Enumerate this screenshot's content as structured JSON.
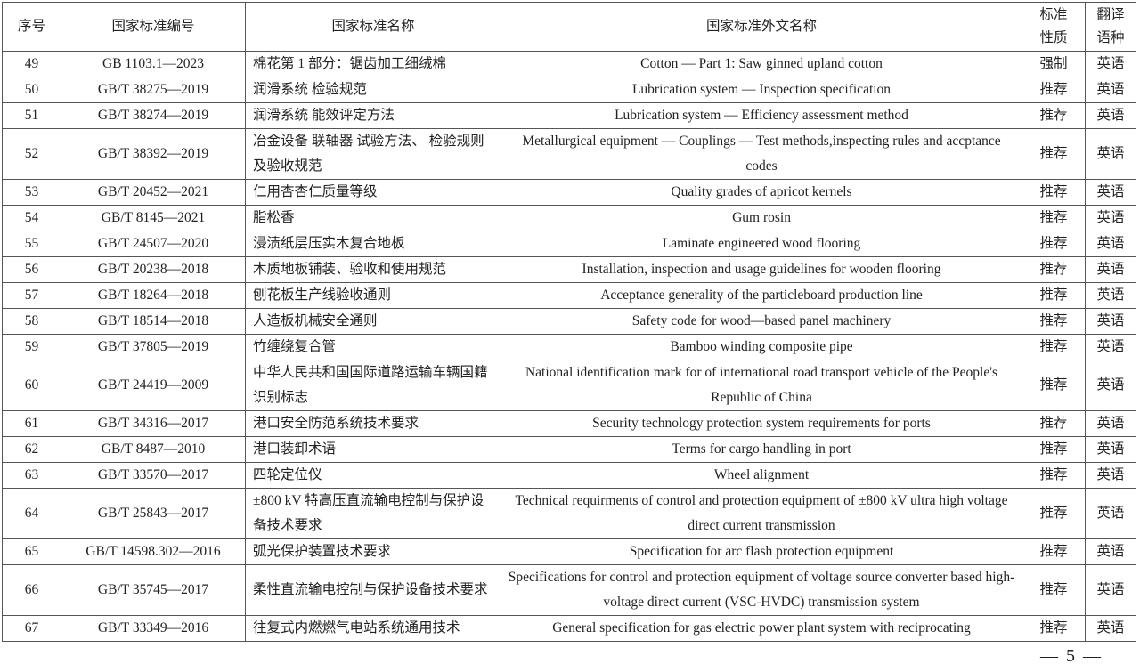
{
  "headers": {
    "no": "序号",
    "code": "国家标准编号",
    "name": "国家标准名称",
    "foreign_name": "国家标准外文名称",
    "nature": "标准\n性质",
    "lang": "翻译\n语种"
  },
  "rows": [
    {
      "no": "49",
      "code": "GB 1103.1—2023",
      "name": "棉花第 1 部分：锯齿加工细绒棉",
      "foreign_name": "Cotton — Part 1: Saw ginned upland cotton",
      "nature": "强制",
      "lang": "英语"
    },
    {
      "no": "50",
      "code": "GB/T 38275—2019",
      "name": "润滑系统  检验规范",
      "foreign_name": "Lubrication system — Inspection specification",
      "nature": "推荐",
      "lang": "英语"
    },
    {
      "no": "51",
      "code": "GB/T 38274—2019",
      "name": "润滑系统  能效评定方法",
      "foreign_name": "Lubrication system — Efficiency assessment method",
      "nature": "推荐",
      "lang": "英语"
    },
    {
      "no": "52",
      "code": "GB/T 38392—2019",
      "name": "冶金设备  联轴器  试验方法、  检验规则及验收规范",
      "foreign_name": "Metallurgical equipment — Couplings — Test methods,inspecting rules and accptance codes",
      "nature": "推荐",
      "lang": "英语"
    },
    {
      "no": "53",
      "code": "GB/T 20452—2021",
      "name": "仁用杏杏仁质量等级",
      "foreign_name": "Quality grades of apricot kernels",
      "nature": "推荐",
      "lang": "英语"
    },
    {
      "no": "54",
      "code": "GB/T 8145—2021",
      "name": "脂松香",
      "foreign_name": "Gum rosin",
      "nature": "推荐",
      "lang": "英语"
    },
    {
      "no": "55",
      "code": "GB/T 24507—2020",
      "name": "浸渍纸层压实木复合地板",
      "foreign_name": "Laminate engineered wood flooring",
      "nature": "推荐",
      "lang": "英语"
    },
    {
      "no": "56",
      "code": "GB/T 20238—2018",
      "name": "木质地板铺装、验收和使用规范",
      "foreign_name": "Installation, inspection and usage guidelines for wooden flooring",
      "nature": "推荐",
      "lang": "英语"
    },
    {
      "no": "57",
      "code": "GB/T 18264—2018",
      "name": "刨花板生产线验收通则",
      "foreign_name": "Acceptance generality of the particleboard production line",
      "nature": "推荐",
      "lang": "英语"
    },
    {
      "no": "58",
      "code": "GB/T 18514—2018",
      "name": "人造板机械安全通则",
      "foreign_name": "Safety code for wood—based panel machinery",
      "nature": "推荐",
      "lang": "英语"
    },
    {
      "no": "59",
      "code": "GB/T 37805—2019",
      "name": "竹缠绕复合管",
      "foreign_name": "Bamboo winding composite pipe",
      "nature": "推荐",
      "lang": "英语"
    },
    {
      "no": "60",
      "code": "GB/T 24419—2009",
      "name": "中华人民共和国国际道路运输车辆国籍识别标志",
      "foreign_name": "National identification mark for of international road transport vehicle of the People's Republic of China",
      "nature": "推荐",
      "lang": "英语"
    },
    {
      "no": "61",
      "code": "GB/T 34316—2017",
      "name": "港口安全防范系统技术要求",
      "foreign_name": "Security technology protection system requirements for ports",
      "nature": "推荐",
      "lang": "英语"
    },
    {
      "no": "62",
      "code": "GB/T 8487—2010",
      "name": "港口装卸术语",
      "foreign_name": "Terms for cargo handling in port",
      "nature": "推荐",
      "lang": "英语"
    },
    {
      "no": "63",
      "code": "GB/T 33570—2017",
      "name": "四轮定位仪",
      "foreign_name": "Wheel alignment",
      "nature": "推荐",
      "lang": "英语"
    },
    {
      "no": "64",
      "code": "GB/T 25843—2017",
      "name": "±800 kV  特高压直流输电控制与保护设备技术要求",
      "foreign_name": "Technical requirments of control and protection equipment of ±800 kV ultra high voltage direct current transmission",
      "nature": "推荐",
      "lang": "英语"
    },
    {
      "no": "65",
      "code": "GB/T 14598.302—2016",
      "name": "弧光保护装置技术要求",
      "foreign_name": "Specification for arc flash protection equipment",
      "nature": "推荐",
      "lang": "英语"
    },
    {
      "no": "66",
      "code": "GB/T 35745—2017",
      "name": "柔性直流输电控制与保护设备技术要求",
      "foreign_name": "Specifications for control and protection equipment of voltage source converter based high-voltage direct current (VSC-HVDC) transmission system",
      "nature": "推荐",
      "lang": "英语"
    },
    {
      "no": "67",
      "code": "GB/T 33349—2016",
      "name": "往复式内燃燃气电站系统通用技术",
      "foreign_name": "General specification for gas electric power plant system with reciprocating",
      "nature": "推荐",
      "lang": "英语"
    }
  ],
  "page_number": "— 5 —"
}
